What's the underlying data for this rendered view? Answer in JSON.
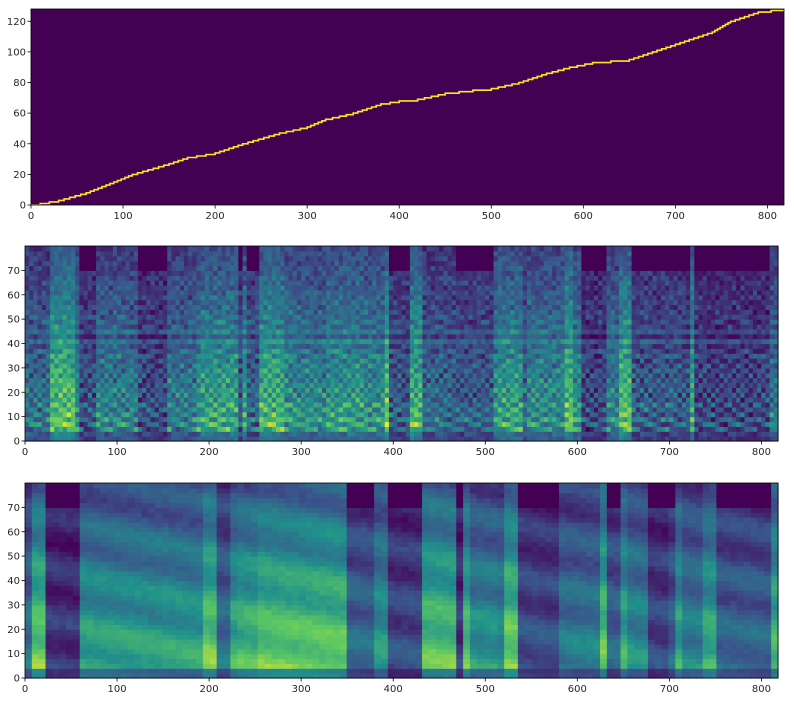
{
  "chart_data": [
    {
      "type": "heatmap",
      "name": "alignment",
      "title": "",
      "xlabel": "",
      "ylabel": "",
      "xlim": [
        0,
        818
      ],
      "ylim": [
        0,
        128
      ],
      "xticks": [
        0,
        100,
        200,
        300,
        400,
        500,
        600,
        700,
        800
      ],
      "yticks": [
        0,
        20,
        40,
        60,
        80,
        100,
        120
      ],
      "background_color": "#440154",
      "line_color": "#fde725",
      "alignment_path": [
        [
          0,
          0
        ],
        [
          30,
          3
        ],
        [
          60,
          8
        ],
        [
          90,
          15
        ],
        [
          110,
          20
        ],
        [
          150,
          27
        ],
        [
          170,
          31
        ],
        [
          200,
          34
        ],
        [
          230,
          40
        ],
        [
          270,
          47
        ],
        [
          300,
          51
        ],
        [
          320,
          56
        ],
        [
          350,
          60
        ],
        [
          380,
          66
        ],
        [
          400,
          68
        ],
        [
          420,
          69
        ],
        [
          450,
          73
        ],
        [
          480,
          75
        ],
        [
          500,
          76
        ],
        [
          530,
          80
        ],
        [
          560,
          86
        ],
        [
          585,
          90
        ],
        [
          610,
          93
        ],
        [
          650,
          95
        ],
        [
          680,
          101
        ],
        [
          710,
          107
        ],
        [
          740,
          113
        ],
        [
          760,
          120
        ],
        [
          790,
          126
        ],
        [
          818,
          128
        ]
      ]
    },
    {
      "type": "heatmap",
      "name": "target-mel-spectrogram",
      "title": "",
      "xlabel": "",
      "ylabel": "",
      "xlim": [
        0,
        818
      ],
      "ylim": [
        0,
        80
      ],
      "xticks": [
        0,
        100,
        200,
        300,
        400,
        500,
        600,
        700,
        800
      ],
      "yticks": [
        0,
        10,
        20,
        30,
        40,
        50,
        60,
        70
      ],
      "colormap": [
        "#440154",
        "#3b528b",
        "#21918c",
        "#5ec962",
        "#fde725"
      ]
    },
    {
      "type": "heatmap",
      "name": "predicted-mel-spectrogram",
      "title": "",
      "xlabel": "",
      "ylabel": "",
      "xlim": [
        0,
        818
      ],
      "ylim": [
        0,
        80
      ],
      "xticks": [
        0,
        100,
        200,
        300,
        400,
        500,
        600,
        700,
        800
      ],
      "yticks": [
        0,
        10,
        20,
        30,
        40,
        50,
        60,
        70
      ],
      "colormap": [
        "#440154",
        "#3b528b",
        "#21918c",
        "#5ec962",
        "#fde725"
      ]
    }
  ]
}
